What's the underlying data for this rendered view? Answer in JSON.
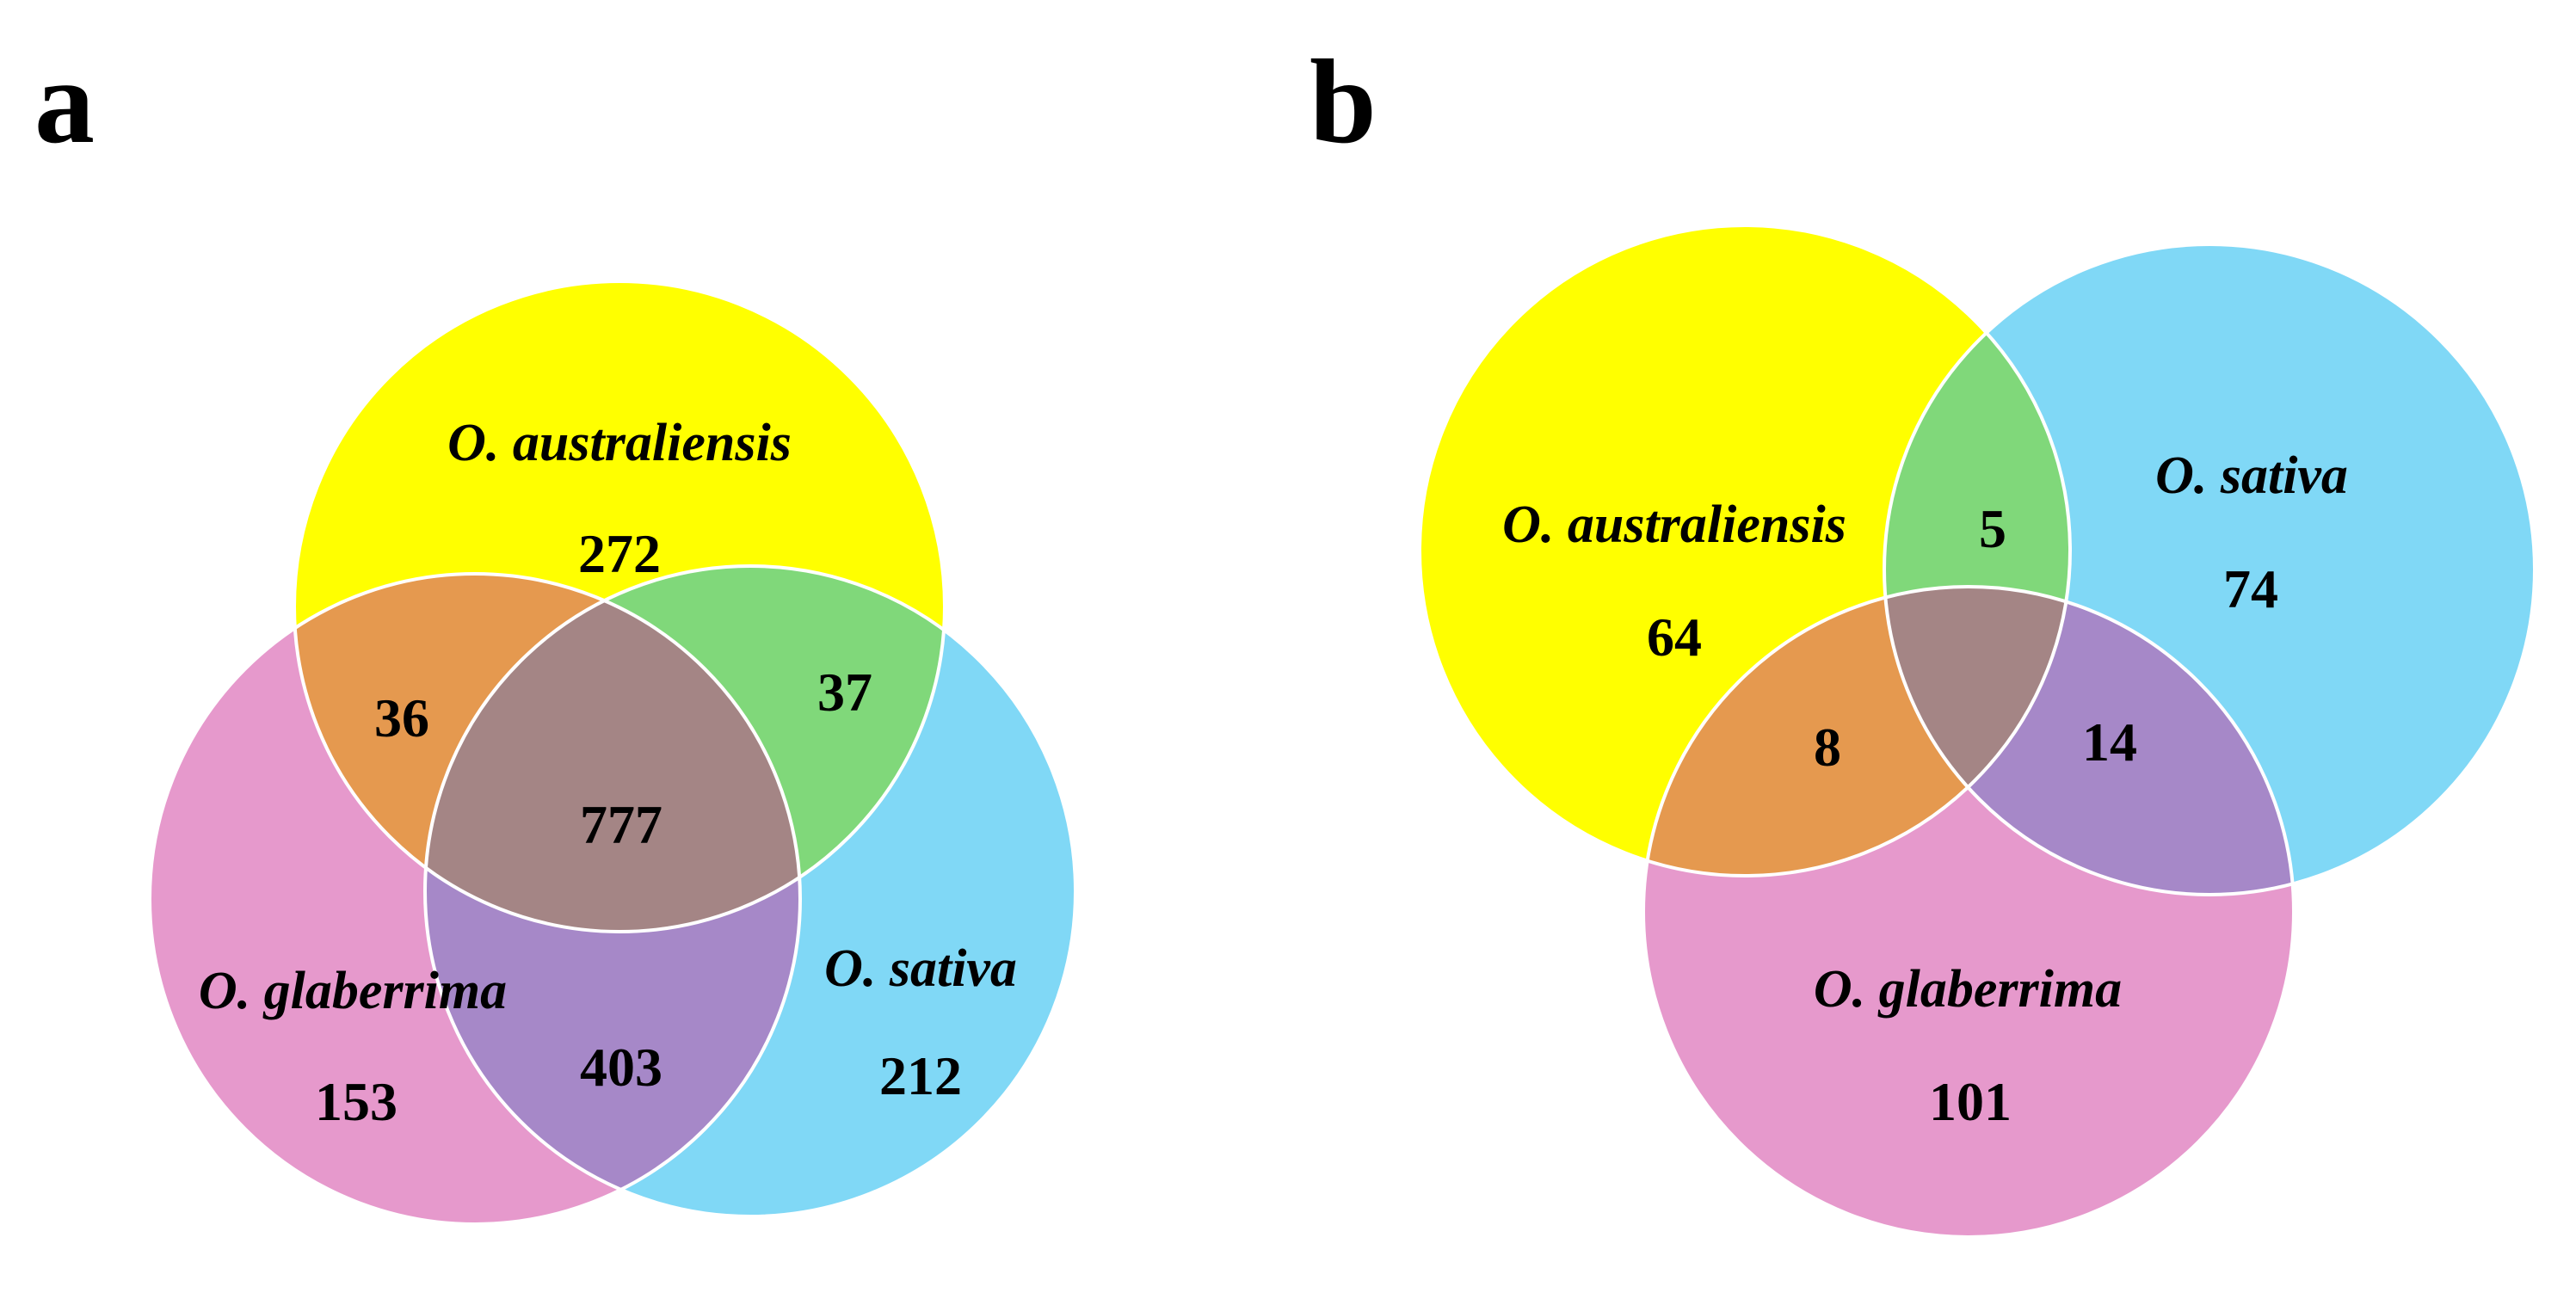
{
  "colors": {
    "yellow": "#ffff00",
    "pink": "#e699cc",
    "blue": "#80d8f6",
    "orange": "#e5994f",
    "green": "#80d87a",
    "purple": "#a688c8",
    "center": "#a48585",
    "outline": "#ffffff"
  },
  "panel_a": {
    "letter": "a",
    "labels": {
      "australiensis": "O. australiensis",
      "glaberrima": "O. glaberrima",
      "sativa": "O. sativa"
    },
    "counts": {
      "australiensis_only": "272",
      "glaberrima_only": "153",
      "sativa_only": "212",
      "australiensis_glaberrima": "36",
      "australiensis_sativa": "37",
      "glaberrima_sativa": "403",
      "all_three": "777"
    }
  },
  "panel_b": {
    "letter": "b",
    "labels": {
      "australiensis": "O. australiensis",
      "sativa": "O. sativa",
      "glaberrima": "O. glaberrima"
    },
    "counts": {
      "australiensis_only": "64",
      "sativa_only": "74",
      "glaberrima_only": "101",
      "australiensis_sativa": "5",
      "australiensis_glaberrima": "8",
      "sativa_glaberrima": "14"
    }
  }
}
